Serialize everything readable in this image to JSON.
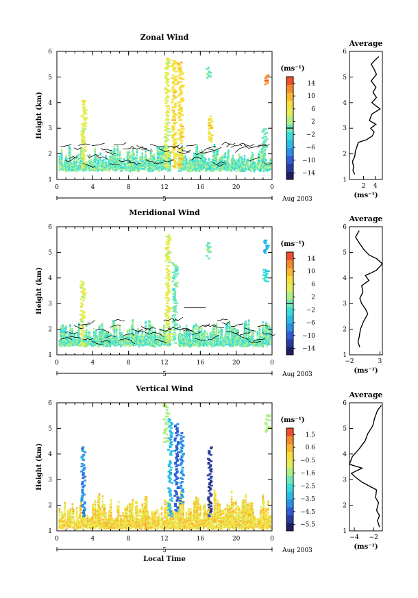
{
  "chart_data": [
    {
      "type": "heatmap",
      "title": "Zonal Wind",
      "ylabel": "Height (km)",
      "xlim": [
        0,
        24
      ],
      "ylim": [
        1,
        6
      ],
      "x_ticks": [
        "0",
        "4",
        "8",
        "12",
        "16",
        "20",
        "0"
      ],
      "y_ticks": [
        "1",
        "2",
        "3",
        "4",
        "5",
        "6"
      ],
      "date_marker": "5",
      "date_label": "Aug 2003",
      "colorbar": {
        "unit": "(ms⁻¹)",
        "ticks": [
          "14",
          "10",
          "6",
          "2",
          "−2",
          "−6",
          "−10",
          "−14"
        ],
        "range": [
          -16,
          16
        ]
      },
      "average_profile": {
        "title": "Average",
        "xlabel": "(ms⁻¹)",
        "xlim": [
          -0.4,
          5.2
        ],
        "x_ticks": [
          2,
          4
        ],
        "x_tick_labels": [
          "2",
          "4"
        ],
        "ylim": [
          1,
          6
        ],
        "y_ticks": [
          "1",
          "2",
          "3",
          "4",
          "5",
          "6"
        ],
        "zero_line": null,
        "points": [
          [
            0.5,
            1.2
          ],
          [
            0.2,
            1.35
          ],
          [
            0.3,
            1.5
          ],
          [
            0.1,
            1.7
          ],
          [
            0.5,
            1.9
          ],
          [
            0.6,
            2.1
          ],
          [
            0.9,
            2.3
          ],
          [
            1.1,
            2.45
          ],
          [
            2.5,
            2.55
          ],
          [
            3.5,
            2.7
          ],
          [
            3.8,
            2.85
          ],
          [
            3.2,
            3.0
          ],
          [
            4.1,
            3.15
          ],
          [
            3.0,
            3.3
          ],
          [
            3.4,
            3.55
          ],
          [
            4.8,
            3.75
          ],
          [
            3.4,
            4.0
          ],
          [
            4.2,
            4.2
          ],
          [
            3.6,
            4.4
          ],
          [
            4.1,
            4.6
          ],
          [
            3.3,
            4.85
          ],
          [
            4.2,
            5.1
          ],
          [
            3.8,
            5.3
          ],
          [
            3.3,
            5.5
          ],
          [
            3.9,
            5.65
          ],
          [
            4.6,
            5.8
          ]
        ]
      }
    },
    {
      "type": "heatmap",
      "title": "Meridional Wind",
      "ylabel": "Height (km)",
      "xlim": [
        0,
        24
      ],
      "ylim": [
        1,
        6
      ],
      "x_ticks": [
        "0",
        "4",
        "8",
        "12",
        "16",
        "20",
        "0"
      ],
      "y_ticks": [
        "1",
        "2",
        "3",
        "4",
        "5",
        "6"
      ],
      "date_marker": "5",
      "date_label": "Aug 2003",
      "colorbar": {
        "unit": "(ms⁻¹)",
        "ticks": [
          "14",
          "10",
          "6",
          "2",
          "−2",
          "−6",
          "−10",
          "−14"
        ],
        "range": [
          -16,
          16
        ]
      },
      "average_profile": {
        "title": "Average",
        "xlabel": "(ms⁻¹)",
        "xlim": [
          -2.0,
          3.4
        ],
        "x_ticks": [
          -2,
          3
        ],
        "x_tick_labels": [
          "−2",
          "3"
        ],
        "ylim": [
          1,
          6
        ],
        "y_ticks": [
          "1",
          "2",
          "3",
          "4",
          "5",
          "6"
        ],
        "zero_line": null,
        "points": [
          [
            -0.3,
            1.3
          ],
          [
            -0.6,
            1.5
          ],
          [
            -0.4,
            1.7
          ],
          [
            -0.2,
            2.0
          ],
          [
            0.3,
            2.3
          ],
          [
            1.0,
            2.6
          ],
          [
            0.6,
            2.8
          ],
          [
            0.0,
            3.0
          ],
          [
            -0.3,
            3.2
          ],
          [
            0.2,
            3.45
          ],
          [
            0.0,
            3.7
          ],
          [
            1.2,
            3.9
          ],
          [
            0.6,
            4.1
          ],
          [
            1.6,
            4.2
          ],
          [
            2.4,
            4.3
          ],
          [
            3.4,
            4.55
          ],
          [
            2.5,
            4.75
          ],
          [
            1.2,
            4.9
          ],
          [
            0.4,
            5.1
          ],
          [
            -0.5,
            5.4
          ],
          [
            -1.0,
            5.6
          ],
          [
            -0.4,
            5.85
          ]
        ]
      }
    },
    {
      "type": "heatmap",
      "title": "Vertical Wind",
      "xlabel": "Local Time",
      "ylabel": "Height (km)",
      "xlim": [
        0,
        24
      ],
      "ylim": [
        1,
        6
      ],
      "x_ticks": [
        "0",
        "4",
        "8",
        "12",
        "16",
        "20",
        "0"
      ],
      "y_ticks": [
        "1",
        "2",
        "3",
        "4",
        "5",
        "6"
      ],
      "date_marker": "5",
      "date_label": "Aug 2003",
      "colorbar": {
        "unit": "(ms⁻¹)",
        "ticks": [
          "1.5",
          "0.6",
          "−0.5",
          "−1.6",
          "−2.5",
          "−3.5",
          "−4.5",
          "−5.5"
        ],
        "range": [
          -6.0,
          2.0
        ]
      },
      "average_profile": {
        "title": "Average",
        "xlabel": "(ms⁻¹)",
        "xlim": [
          -4.5,
          -1.1
        ],
        "x_ticks": [
          -4,
          -2
        ],
        "x_tick_labels": [
          "−4",
          "−2"
        ],
        "ylim": [
          1,
          6
        ],
        "y_ticks": [
          "1",
          "2",
          "3",
          "4",
          "5",
          "6"
        ],
        "zero_line": null,
        "points": [
          [
            -1.4,
            1.15
          ],
          [
            -1.6,
            1.4
          ],
          [
            -1.4,
            1.6
          ],
          [
            -1.7,
            1.8
          ],
          [
            -1.5,
            2.1
          ],
          [
            -1.8,
            2.3
          ],
          [
            -1.7,
            2.6
          ],
          [
            -3.2,
            2.9
          ],
          [
            -3.9,
            3.1
          ],
          [
            -4.3,
            3.25
          ],
          [
            -3.2,
            3.45
          ],
          [
            -4.5,
            3.6
          ],
          [
            -4.2,
            3.9
          ],
          [
            -3.5,
            4.2
          ],
          [
            -2.9,
            4.5
          ],
          [
            -2.6,
            4.8
          ],
          [
            -2.1,
            5.1
          ],
          [
            -1.9,
            5.4
          ],
          [
            -1.6,
            5.7
          ],
          [
            -1.2,
            5.9
          ]
        ]
      }
    }
  ],
  "colors": {
    "colorbar_scale": [
      "#1f1f5f",
      "#2a3a9e",
      "#2d5ed8",
      "#2c8fe8",
      "#29bde6",
      "#36dcd6",
      "#70e8b8",
      "#b0ee84",
      "#e1ee58",
      "#f6de3a",
      "#f8b72e",
      "#f58a2a",
      "#ef4f2c"
    ],
    "contour_line": "#000000"
  },
  "colors_meta": {
    "scale_order": "low-to-high"
  }
}
